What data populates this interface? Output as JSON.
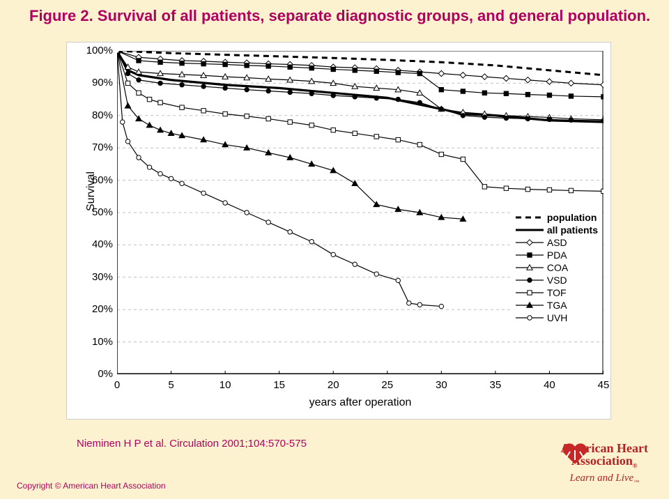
{
  "title": "Figure 2. Survival of all patients, separate diagnostic groups, and general population.",
  "citation": "Nieminen H P et al. Circulation 2001;104:570-575",
  "copyright": "Copyright © American Heart Association",
  "aha_line1": "American Heart",
  "aha_line2": "Association",
  "aha_tag": "Learn and Live",
  "chart": {
    "type": "line",
    "ylabel": "Survival",
    "xlabel": "years after operation",
    "background_color": "#ffffff",
    "grid_color": "#c0c0c0",
    "axis_color": "#000000",
    "label_fontsize": 16,
    "tick_fontsize": 15,
    "xlim": [
      0,
      45
    ],
    "ylim": [
      0,
      100
    ],
    "xtick_step": 5,
    "yticks": [
      0,
      10,
      20,
      30,
      40,
      50,
      60,
      70,
      80,
      90,
      100
    ],
    "ytick_labels": [
      "0%",
      "10%",
      "20%",
      "30%",
      "40%",
      "50%",
      "60%",
      "70%",
      "80%",
      "90%",
      "100%"
    ],
    "x_after_ticks": 30
  },
  "legend_items": [
    {
      "key": "population",
      "label": "population"
    },
    {
      "key": "all_patients",
      "label": "all patients"
    },
    {
      "key": "ASD",
      "label": "ASD"
    },
    {
      "key": "PDA",
      "label": "PDA"
    },
    {
      "key": "COA",
      "label": "COA"
    },
    {
      "key": "VSD",
      "label": "VSD"
    },
    {
      "key": "TOF",
      "label": "TOF"
    },
    {
      "key": "TGA",
      "label": "TGA"
    },
    {
      "key": "UVH",
      "label": "UVH"
    }
  ],
  "series": {
    "population": {
      "dash": "8,6",
      "width": 3,
      "marker": "none",
      "color": "#000000",
      "pts": [
        [
          0,
          100
        ],
        [
          5,
          99.3
        ],
        [
          10,
          98.8
        ],
        [
          15,
          98.3
        ],
        [
          20,
          97.8
        ],
        [
          25,
          97.2
        ],
        [
          30,
          96.5
        ],
        [
          35,
          95.5
        ],
        [
          40,
          94.0
        ],
        [
          45,
          92.5
        ]
      ]
    },
    "all_patients": {
      "dash": "",
      "width": 3.2,
      "marker": "none",
      "color": "#000000",
      "pts": [
        [
          0,
          100
        ],
        [
          1,
          94
        ],
        [
          2,
          92.5
        ],
        [
          5,
          91
        ],
        [
          10,
          89.5
        ],
        [
          15,
          88.5
        ],
        [
          20,
          87
        ],
        [
          25,
          85.5
        ],
        [
          30,
          82
        ],
        [
          32,
          80.5
        ],
        [
          35,
          80
        ],
        [
          40,
          78.5
        ],
        [
          45,
          78
        ]
      ]
    },
    "ASD": {
      "dash": "",
      "width": 1.2,
      "marker": "diamond",
      "color": "#000000",
      "fill": "#ffffff",
      "pts": [
        [
          0,
          100
        ],
        [
          2,
          98
        ],
        [
          4,
          97.5
        ],
        [
          6,
          97
        ],
        [
          8,
          96.8
        ],
        [
          10,
          96.5
        ],
        [
          12,
          96.3
        ],
        [
          14,
          96
        ],
        [
          16,
          95.8
        ],
        [
          18,
          95.5
        ],
        [
          20,
          95
        ],
        [
          22,
          94.8
        ],
        [
          24,
          94.5
        ],
        [
          26,
          94
        ],
        [
          28,
          93.5
        ],
        [
          30,
          93
        ],
        [
          32,
          92.5
        ],
        [
          34,
          92
        ],
        [
          36,
          91.5
        ],
        [
          38,
          91
        ],
        [
          40,
          90.5
        ],
        [
          42,
          90
        ],
        [
          45,
          89.5
        ]
      ]
    },
    "PDA": {
      "dash": "",
      "width": 1.2,
      "marker": "square",
      "color": "#000000",
      "fill": "#000000",
      "pts": [
        [
          0,
          100
        ],
        [
          2,
          97
        ],
        [
          4,
          96.5
        ],
        [
          6,
          96.2
        ],
        [
          8,
          96
        ],
        [
          10,
          95.8
        ],
        [
          12,
          95.5
        ],
        [
          14,
          95.3
        ],
        [
          16,
          95
        ],
        [
          18,
          94.7
        ],
        [
          20,
          94.3
        ],
        [
          22,
          94
        ],
        [
          24,
          93.7
        ],
        [
          26,
          93.3
        ],
        [
          28,
          93
        ],
        [
          30,
          88
        ],
        [
          32,
          87.5
        ],
        [
          34,
          87
        ],
        [
          36,
          86.8
        ],
        [
          38,
          86.5
        ],
        [
          40,
          86.3
        ],
        [
          42,
          86
        ],
        [
          45,
          85.8
        ]
      ]
    },
    "COA": {
      "dash": "",
      "width": 1.2,
      "marker": "triangle",
      "color": "#000000",
      "fill": "#ffffff",
      "pts": [
        [
          0,
          100
        ],
        [
          1,
          95
        ],
        [
          2,
          93.5
        ],
        [
          4,
          93
        ],
        [
          6,
          92.7
        ],
        [
          8,
          92.4
        ],
        [
          10,
          92
        ],
        [
          12,
          91.7
        ],
        [
          14,
          91.3
        ],
        [
          16,
          91
        ],
        [
          18,
          90.6
        ],
        [
          20,
          90
        ],
        [
          22,
          89
        ],
        [
          24,
          88.5
        ],
        [
          26,
          88
        ],
        [
          28,
          87
        ],
        [
          30,
          82
        ],
        [
          32,
          81
        ],
        [
          34,
          80.5
        ],
        [
          36,
          80
        ],
        [
          38,
          79.7
        ],
        [
          40,
          79.4
        ],
        [
          42,
          79
        ],
        [
          45,
          78.7
        ]
      ]
    },
    "VSD": {
      "dash": "",
      "width": 1.2,
      "marker": "circle",
      "color": "#000000",
      "fill": "#000000",
      "pts": [
        [
          0,
          100
        ],
        [
          1,
          93
        ],
        [
          2,
          91
        ],
        [
          4,
          90
        ],
        [
          6,
          89.5
        ],
        [
          8,
          89
        ],
        [
          10,
          88.5
        ],
        [
          12,
          88
        ],
        [
          14,
          87.6
        ],
        [
          16,
          87.2
        ],
        [
          18,
          86.8
        ],
        [
          20,
          86.2
        ],
        [
          22,
          85.8
        ],
        [
          24,
          85.4
        ],
        [
          26,
          85
        ],
        [
          28,
          84
        ],
        [
          30,
          82
        ],
        [
          32,
          80
        ],
        [
          34,
          79.5
        ],
        [
          36,
          79.2
        ],
        [
          38,
          79
        ],
        [
          40,
          78.8
        ],
        [
          42,
          78.6
        ],
        [
          45,
          78.4
        ]
      ]
    },
    "TOF": {
      "dash": "",
      "width": 1.2,
      "marker": "square",
      "color": "#000000",
      "fill": "#ffffff",
      "pts": [
        [
          0,
          100
        ],
        [
          1,
          90
        ],
        [
          2,
          87
        ],
        [
          3,
          85
        ],
        [
          4,
          84
        ],
        [
          6,
          82.5
        ],
        [
          8,
          81.5
        ],
        [
          10,
          80.5
        ],
        [
          12,
          79.8
        ],
        [
          14,
          79
        ],
        [
          16,
          78
        ],
        [
          18,
          77
        ],
        [
          20,
          75.5
        ],
        [
          22,
          74.5
        ],
        [
          24,
          73.5
        ],
        [
          26,
          72.5
        ],
        [
          28,
          71
        ],
        [
          30,
          68
        ],
        [
          32,
          66.5
        ],
        [
          34,
          58
        ],
        [
          36,
          57.5
        ],
        [
          38,
          57.2
        ],
        [
          40,
          57
        ],
        [
          42,
          56.8
        ],
        [
          45,
          56.6
        ]
      ]
    },
    "TGA": {
      "dash": "",
      "width": 1.2,
      "marker": "triangle",
      "color": "#000000",
      "fill": "#000000",
      "pts": [
        [
          0,
          100
        ],
        [
          1,
          83
        ],
        [
          2,
          79
        ],
        [
          3,
          77
        ],
        [
          4,
          75.5
        ],
        [
          5,
          74.5
        ],
        [
          6,
          73.8
        ],
        [
          8,
          72.5
        ],
        [
          10,
          71
        ],
        [
          12,
          70
        ],
        [
          14,
          68.5
        ],
        [
          16,
          67
        ],
        [
          18,
          65
        ],
        [
          20,
          63
        ],
        [
          22,
          59
        ],
        [
          24,
          52.5
        ],
        [
          26,
          51
        ],
        [
          28,
          50
        ],
        [
          30,
          48.5
        ],
        [
          32,
          48
        ]
      ]
    },
    "UVH": {
      "dash": "",
      "width": 1.2,
      "marker": "circle",
      "color": "#000000",
      "fill": "#ffffff",
      "pts": [
        [
          0,
          100
        ],
        [
          0.5,
          78
        ],
        [
          1,
          72
        ],
        [
          2,
          67
        ],
        [
          3,
          64
        ],
        [
          4,
          62
        ],
        [
          5,
          60.5
        ],
        [
          6,
          59
        ],
        [
          8,
          56
        ],
        [
          10,
          53
        ],
        [
          12,
          50
        ],
        [
          14,
          47
        ],
        [
          16,
          44
        ],
        [
          18,
          41
        ],
        [
          20,
          37
        ],
        [
          22,
          34
        ],
        [
          24,
          31
        ],
        [
          26,
          29
        ],
        [
          27,
          22
        ],
        [
          28,
          21.5
        ],
        [
          30,
          21
        ]
      ]
    }
  }
}
